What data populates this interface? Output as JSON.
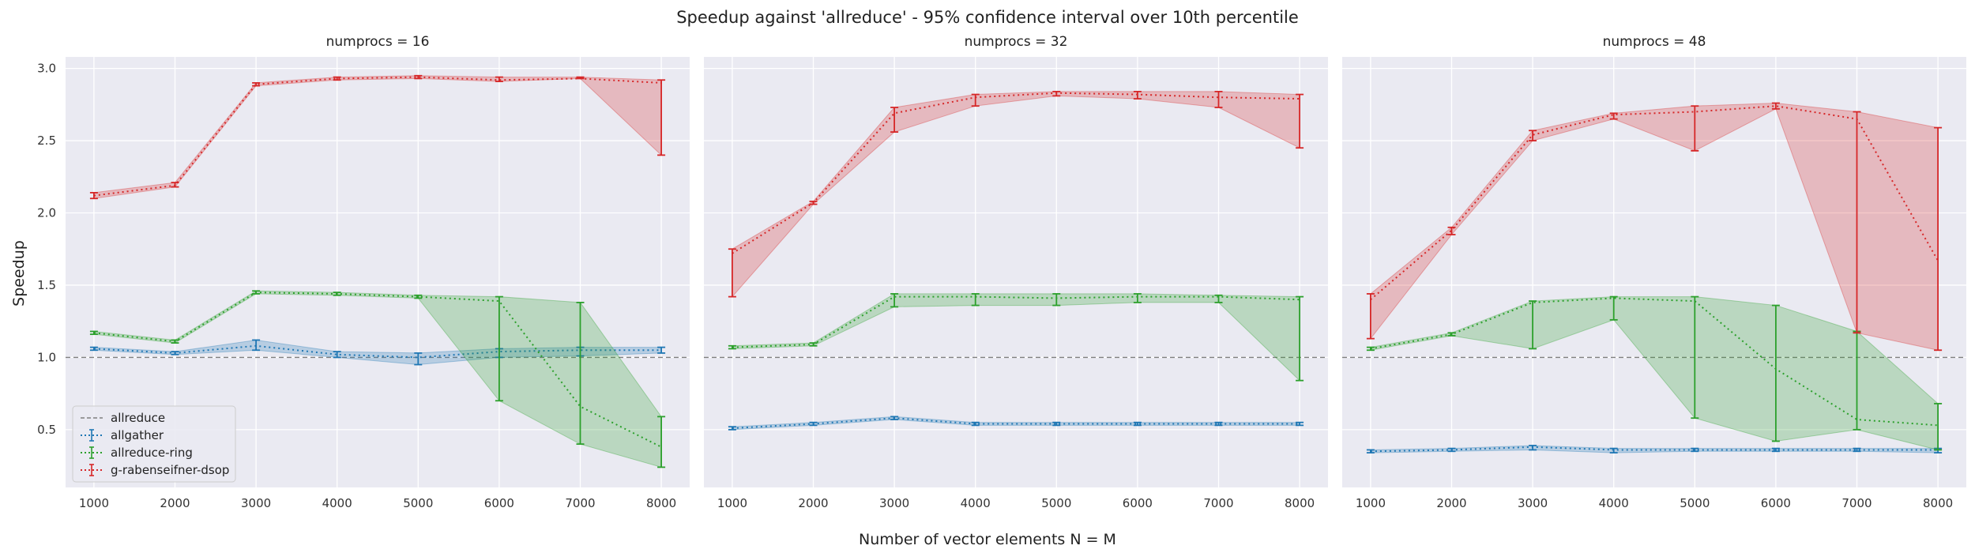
{
  "figure": {
    "title": "Speedup against 'allreduce' - 95% confidence interval over 10th percentile",
    "xlabel": "Number of vector elements N = M",
    "ylabel": "Speedup"
  },
  "colors": {
    "background": "#eaeaf2",
    "grid": "#ffffff",
    "allreduce": "#7f7f7f",
    "allgather": "#1f77b4",
    "allreduce-ring": "#2ca02c",
    "g-rabenseifner-dsop": "#d62728"
  },
  "legend": {
    "placement": "lower-left of first panel",
    "entries": [
      "allreduce",
      "allgather",
      "allreduce-ring",
      "g-rabenseifner-dsop"
    ]
  },
  "chart_data": [
    {
      "type": "line",
      "title": "numprocs = 16",
      "x": [
        1000,
        2000,
        3000,
        4000,
        5000,
        6000,
        7000,
        8000
      ],
      "xlim": [
        650,
        8350
      ],
      "ylim": [
        0.1,
        3.08
      ],
      "xticks": [
        1000,
        2000,
        3000,
        4000,
        5000,
        6000,
        7000,
        8000
      ],
      "yticks": [
        0.5,
        1.0,
        1.5,
        2.0,
        2.5,
        3.0
      ],
      "grid": true,
      "reference_line": {
        "name": "allreduce",
        "y": 1.0
      },
      "series": [
        {
          "name": "allgather",
          "values": [
            1.06,
            1.03,
            1.08,
            1.02,
            1.0,
            1.04,
            1.05,
            1.05
          ],
          "lower": [
            1.05,
            1.02,
            1.05,
            1.0,
            0.95,
            1.0,
            1.01,
            1.03
          ],
          "upper": [
            1.07,
            1.04,
            1.12,
            1.04,
            1.03,
            1.06,
            1.07,
            1.07
          ]
        },
        {
          "name": "allreduce-ring",
          "values": [
            1.17,
            1.11,
            1.45,
            1.44,
            1.42,
            1.39,
            0.66,
            0.38
          ],
          "lower": [
            1.16,
            1.1,
            1.44,
            1.43,
            1.41,
            0.7,
            0.4,
            0.24
          ],
          "upper": [
            1.18,
            1.12,
            1.46,
            1.45,
            1.43,
            1.42,
            1.38,
            0.59
          ]
        },
        {
          "name": "g-rabenseifner-dsop",
          "values": [
            2.12,
            2.19,
            2.89,
            2.93,
            2.94,
            2.92,
            2.93,
            2.9
          ],
          "lower": [
            2.1,
            2.18,
            2.88,
            2.92,
            2.93,
            2.91,
            2.93,
            2.4
          ],
          "upper": [
            2.14,
            2.21,
            2.9,
            2.94,
            2.95,
            2.94,
            2.94,
            2.92
          ]
        }
      ]
    },
    {
      "type": "line",
      "title": "numprocs = 32",
      "x": [
        1000,
        2000,
        3000,
        4000,
        5000,
        6000,
        7000,
        8000
      ],
      "xlim": [
        650,
        8350
      ],
      "ylim": [
        0.1,
        3.08
      ],
      "xticks": [
        1000,
        2000,
        3000,
        4000,
        5000,
        6000,
        7000,
        8000
      ],
      "yticks": [
        0.5,
        1.0,
        1.5,
        2.0,
        2.5,
        3.0
      ],
      "grid": true,
      "reference_line": {
        "name": "allreduce",
        "y": 1.0
      },
      "series": [
        {
          "name": "allgather",
          "values": [
            0.51,
            0.54,
            0.58,
            0.54,
            0.54,
            0.54,
            0.54,
            0.54
          ],
          "lower": [
            0.5,
            0.53,
            0.57,
            0.53,
            0.53,
            0.53,
            0.53,
            0.53
          ],
          "upper": [
            0.52,
            0.55,
            0.59,
            0.55,
            0.55,
            0.55,
            0.55,
            0.55
          ]
        },
        {
          "name": "allreduce-ring",
          "values": [
            1.07,
            1.09,
            1.42,
            1.42,
            1.41,
            1.42,
            1.42,
            1.4
          ],
          "lower": [
            1.06,
            1.08,
            1.35,
            1.36,
            1.36,
            1.38,
            1.38,
            0.84
          ],
          "upper": [
            1.08,
            1.1,
            1.44,
            1.44,
            1.44,
            1.44,
            1.43,
            1.42
          ]
        },
        {
          "name": "g-rabenseifner-dsop",
          "values": [
            1.72,
            2.07,
            2.69,
            2.8,
            2.83,
            2.82,
            2.8,
            2.79
          ],
          "lower": [
            1.42,
            2.06,
            2.56,
            2.74,
            2.81,
            2.79,
            2.73,
            2.45
          ],
          "upper": [
            1.75,
            2.08,
            2.73,
            2.82,
            2.84,
            2.84,
            2.84,
            2.82
          ]
        }
      ]
    },
    {
      "type": "line",
      "title": "numprocs = 48",
      "x": [
        1000,
        2000,
        3000,
        4000,
        5000,
        6000,
        7000,
        8000
      ],
      "xlim": [
        650,
        8350
      ],
      "ylim": [
        0.1,
        3.08
      ],
      "xticks": [
        1000,
        2000,
        3000,
        4000,
        5000,
        6000,
        7000,
        8000
      ],
      "yticks": [
        0.5,
        1.0,
        1.5,
        2.0,
        2.5,
        3.0
      ],
      "grid": true,
      "reference_line": {
        "name": "allreduce",
        "y": 1.0
      },
      "series": [
        {
          "name": "allgather",
          "values": [
            0.35,
            0.36,
            0.38,
            0.36,
            0.36,
            0.36,
            0.36,
            0.36
          ],
          "lower": [
            0.34,
            0.35,
            0.36,
            0.34,
            0.35,
            0.35,
            0.35,
            0.34
          ],
          "upper": [
            0.36,
            0.37,
            0.39,
            0.37,
            0.37,
            0.37,
            0.37,
            0.37
          ]
        },
        {
          "name": "allreduce-ring",
          "values": [
            1.06,
            1.16,
            1.38,
            1.41,
            1.39,
            0.92,
            0.57,
            0.53
          ],
          "lower": [
            1.05,
            1.15,
            1.06,
            1.26,
            0.58,
            0.42,
            0.5,
            0.36
          ],
          "upper": [
            1.07,
            1.17,
            1.39,
            1.42,
            1.42,
            1.36,
            1.18,
            0.68
          ]
        },
        {
          "name": "g-rabenseifner-dsop",
          "values": [
            1.4,
            1.88,
            2.54,
            2.68,
            2.7,
            2.74,
            2.65,
            1.67
          ],
          "lower": [
            1.13,
            1.85,
            2.5,
            2.65,
            2.43,
            2.72,
            1.17,
            1.05
          ],
          "upper": [
            1.44,
            1.9,
            2.57,
            2.69,
            2.74,
            2.76,
            2.7,
            2.59
          ]
        }
      ]
    }
  ]
}
